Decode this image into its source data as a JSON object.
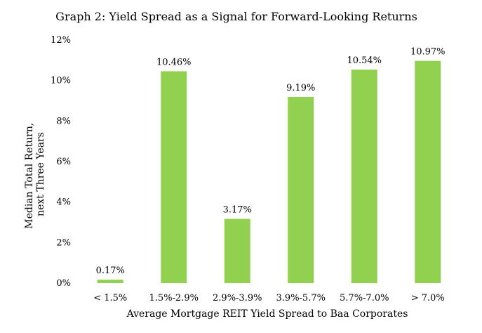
{
  "chart_data": {
    "type": "bar",
    "title": "Graph 2: Yield Spread as a Signal for Forward-Looking Returns",
    "xlabel": "Average Mortgage REIT Yield Spread to Baa Corporates",
    "ylabel_lines": [
      "Median Total Return,",
      "next Three Years"
    ],
    "categories": [
      "< 1.5%",
      "1.5%-2.9%",
      "2.9%-3.9%",
      "3.9%-5.7%",
      "5.7%-7.0%",
      "> 7.0%"
    ],
    "values": [
      0.17,
      10.46,
      3.17,
      9.19,
      10.54,
      10.97
    ],
    "data_labels": [
      "0.17%",
      "10.46%",
      "3.17%",
      "9.19%",
      "10.54%",
      "10.97%"
    ],
    "ylim": [
      0,
      12
    ],
    "yticks": [
      0,
      2,
      4,
      6,
      8,
      10,
      12
    ],
    "ytick_labels": [
      "0%",
      "2%",
      "4%",
      "6%",
      "8%",
      "10%",
      "12%"
    ],
    "bar_color": "#92d050",
    "grid": false,
    "legend": "none"
  }
}
